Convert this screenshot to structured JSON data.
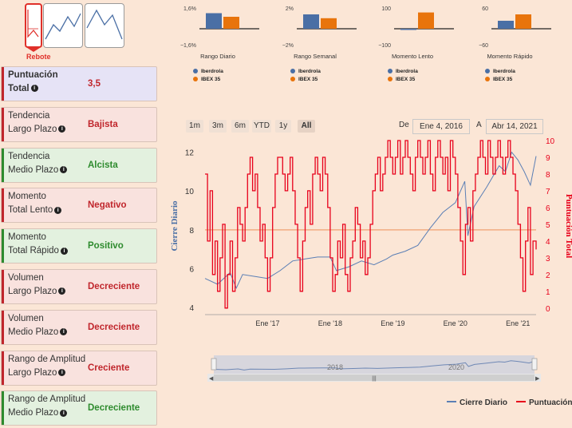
{
  "patterns": {
    "selected_label": "Rebote"
  },
  "cards": [
    {
      "line1": "Puntuación",
      "line2": "Total",
      "value": "3,5",
      "kind": "blue",
      "bold": true
    },
    {
      "line1": "Tendencia",
      "line2": "Largo Plazo",
      "value": "Bajista",
      "kind": "red"
    },
    {
      "line1": "Tendencia",
      "line2": "Medio Plazo",
      "value": "Alcista",
      "kind": "green"
    },
    {
      "line1": "Momento",
      "line2": "Total Lento",
      "value": "Negativo",
      "kind": "red"
    },
    {
      "line1": "Momento",
      "line2": "Total Rápido",
      "value": "Positivo",
      "kind": "green"
    },
    {
      "line1": "Volumen",
      "line2": "Largo Plazo",
      "value": "Decreciente",
      "kind": "red"
    },
    {
      "line1": "Volumen",
      "line2": "Medio Plazo",
      "value": "Decreciente",
      "kind": "red"
    },
    {
      "line1": "Rango de Amplitud",
      "line2": "Largo Plazo",
      "value": "Creciente",
      "kind": "red"
    },
    {
      "line1": "Rango de Amplitud",
      "line2": "Medio Plazo",
      "value": "Decreciente",
      "kind": "green"
    }
  ],
  "colors": {
    "red": "#c0262c",
    "green": "#2e8b2e",
    "blue_series": "#4a6fa5",
    "orange_series": "#e8740c",
    "price_line": "#5b7fb5",
    "score_line": "#e8001b",
    "midline": "#f0a070"
  },
  "mini_charts": [
    {
      "title": "Rango Diario",
      "top_tick": "1,6%",
      "bottom_tick": "−1,6%",
      "max": 1.6,
      "values": [
        1.3,
        1.0
      ],
      "legend": [
        "Iberdrola",
        "IBEX 35"
      ]
    },
    {
      "title": "Rango Semanal",
      "top_tick": "2%",
      "bottom_tick": "−2%",
      "max": 2,
      "values": [
        1.5,
        1.1
      ],
      "legend": [
        "Iberdrola",
        "IBEX 35"
      ]
    },
    {
      "title": "Momento Lento",
      "top_tick": "100",
      "bottom_tick": "−100",
      "max": 100,
      "values": [
        -5,
        85
      ],
      "legend": [
        "Iberdrola",
        "IBEX 35"
      ]
    },
    {
      "title": "Momento Rápido",
      "top_tick": "60",
      "bottom_tick": "−60",
      "max": 60,
      "values": [
        25,
        45
      ],
      "legend": [
        "Iberdrola",
        "IBEX 35"
      ]
    }
  ],
  "range_buttons": [
    "1m",
    "3m",
    "6m",
    "YTD",
    "1y",
    "All"
  ],
  "date_range": {
    "from_label": "De",
    "from": "Ene 4, 2016",
    "to_label": "A",
    "to": "Abr 14, 2021"
  },
  "chart_data": {
    "type": "line",
    "x_labels": [
      "Ene '17",
      "Ene '18",
      "Ene '19",
      "Ene '20",
      "Ene '21"
    ],
    "navigator_labels": [
      "2018",
      "2020"
    ],
    "x_range": [
      2016.0,
      2021.29
    ],
    "y_left": {
      "label": "Cierre Diario",
      "ticks": [
        4,
        6,
        8,
        10,
        12
      ],
      "range": [
        3.8,
        12.6
      ]
    },
    "y_right": {
      "label": "Puntuación Total",
      "ticks": [
        0,
        1,
        2,
        3,
        4,
        5,
        6,
        7,
        8,
        9,
        10
      ],
      "range": [
        -0.2,
        10
      ]
    },
    "series": [
      {
        "name": "Cierre Diario",
        "axis": "left",
        "x": [
          2016.0,
          2016.2,
          2016.4,
          2016.5,
          2016.6,
          2016.8,
          2017.0,
          2017.2,
          2017.4,
          2017.6,
          2017.8,
          2018.0,
          2018.1,
          2018.3,
          2018.5,
          2018.7,
          2018.9,
          2019.0,
          2019.2,
          2019.4,
          2019.6,
          2019.8,
          2020.0,
          2020.15,
          2020.2,
          2020.3,
          2020.5,
          2020.7,
          2020.8,
          2020.9,
          2021.0,
          2021.1,
          2021.2,
          2021.29
        ],
        "y": [
          5.5,
          5.2,
          5.8,
          5.0,
          5.7,
          5.6,
          5.5,
          5.9,
          6.4,
          6.5,
          6.6,
          6.6,
          5.9,
          6.1,
          6.4,
          6.2,
          6.5,
          6.7,
          6.9,
          7.2,
          8.1,
          8.9,
          9.4,
          10.5,
          7.7,
          9.2,
          10.2,
          11.3,
          11.0,
          12.0,
          11.6,
          11.0,
          10.3,
          11.8
        ]
      },
      {
        "name": "Puntuación",
        "axis": "right",
        "x": [
          2016.0,
          2016.04,
          2016.08,
          2016.12,
          2016.16,
          2016.2,
          2016.24,
          2016.28,
          2016.32,
          2016.36,
          2016.4,
          2016.44,
          2016.48,
          2016.52,
          2016.56,
          2016.6,
          2016.64,
          2016.68,
          2016.72,
          2016.76,
          2016.8,
          2016.84,
          2016.88,
          2016.92,
          2016.96,
          2017.0,
          2017.04,
          2017.08,
          2017.12,
          2017.16,
          2017.2,
          2017.24,
          2017.28,
          2017.32,
          2017.36,
          2017.4,
          2017.44,
          2017.48,
          2017.52,
          2017.56,
          2017.6,
          2017.64,
          2017.68,
          2017.72,
          2017.76,
          2017.8,
          2017.84,
          2017.88,
          2017.92,
          2017.96,
          2018.0,
          2018.04,
          2018.08,
          2018.12,
          2018.16,
          2018.2,
          2018.24,
          2018.28,
          2018.32,
          2018.36,
          2018.4,
          2018.44,
          2018.48,
          2018.52,
          2018.56,
          2018.6,
          2018.64,
          2018.68,
          2018.72,
          2018.76,
          2018.8,
          2018.84,
          2018.88,
          2018.92,
          2018.96,
          2019.0,
          2019.04,
          2019.08,
          2019.12,
          2019.16,
          2019.2,
          2019.24,
          2019.28,
          2019.32,
          2019.36,
          2019.4,
          2019.44,
          2019.48,
          2019.52,
          2019.56,
          2019.6,
          2019.64,
          2019.68,
          2019.72,
          2019.76,
          2019.8,
          2019.84,
          2019.88,
          2019.92,
          2019.96,
          2020.0,
          2020.04,
          2020.08,
          2020.12,
          2020.16,
          2020.2,
          2020.24,
          2020.28,
          2020.32,
          2020.36,
          2020.4,
          2020.44,
          2020.48,
          2020.52,
          2020.56,
          2020.6,
          2020.64,
          2020.68,
          2020.72,
          2020.76,
          2020.8,
          2020.84,
          2020.88,
          2020.92,
          2020.96,
          2021.0,
          2021.04,
          2021.08,
          2021.12,
          2021.16,
          2021.2,
          2021.24,
          2021.29
        ],
        "y": [
          8,
          4,
          7,
          2,
          4,
          1,
          3,
          5,
          0,
          2,
          4,
          1,
          3,
          6,
          5,
          4,
          6,
          8,
          9,
          7,
          8,
          6,
          4,
          5,
          3,
          1,
          3,
          6,
          8,
          9,
          9,
          8,
          7,
          8,
          9,
          7,
          5,
          3,
          1,
          4,
          6,
          7,
          5,
          8,
          9,
          8,
          7,
          9,
          8,
          6,
          3,
          1,
          2,
          4,
          3,
          5,
          2,
          1,
          3,
          4,
          6,
          5,
          3,
          4,
          2,
          3,
          5,
          7,
          8,
          9,
          7,
          8,
          9,
          10,
          9,
          8,
          9,
          10,
          8,
          9,
          10,
          9,
          8,
          7,
          9,
          10,
          9,
          8,
          9,
          10,
          8,
          7,
          9,
          10,
          9,
          8,
          9,
          7,
          10,
          9,
          8,
          6,
          4,
          2,
          5,
          6,
          4,
          7,
          8,
          9,
          10,
          9,
          8,
          10,
          9,
          8,
          9,
          10,
          9,
          8,
          9,
          10,
          9,
          8,
          7,
          5,
          3,
          1,
          4,
          6,
          2,
          4,
          3.5
        ]
      }
    ],
    "midline_left": 8,
    "legend": [
      "Cierre Diario",
      "Puntuación"
    ]
  }
}
